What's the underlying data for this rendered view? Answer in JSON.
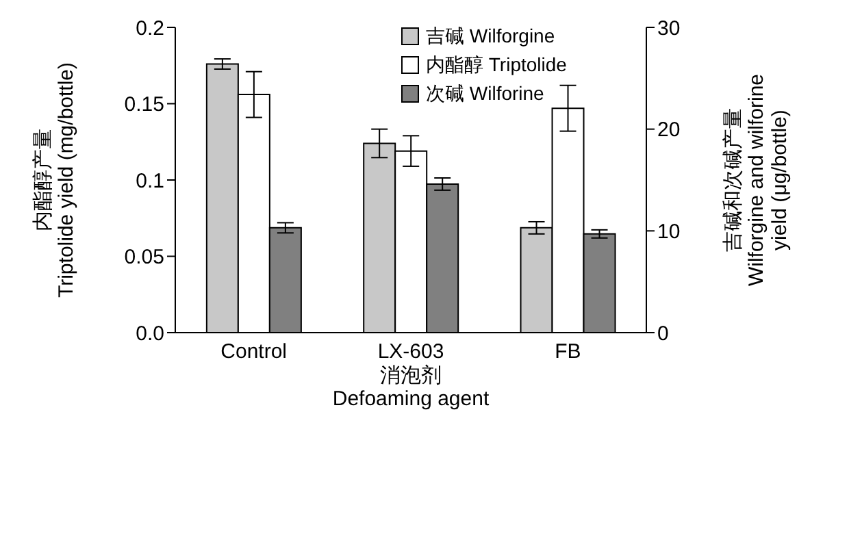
{
  "chart_data": {
    "type": "bar",
    "categories": [
      "Control",
      "LX-603",
      "FB"
    ],
    "series": [
      {
        "name": "吉碱 Wilforgine",
        "color": "#c8c8c8",
        "axis": "y2",
        "values": [
          26.4,
          18.6,
          10.3
        ],
        "errors": [
          0.5,
          1.4,
          0.6
        ]
      },
      {
        "name": "内酯醇 Triptolide",
        "color": "#ffffff",
        "values": [
          0.156,
          0.119,
          0.147
        ],
        "errors": [
          0.015,
          0.01,
          0.015
        ]
      },
      {
        "name": "次碱 Wilforine",
        "color": "#808080",
        "axis": "y2",
        "values": [
          10.3,
          14.6,
          9.7
        ],
        "errors": [
          0.5,
          0.6,
          0.4
        ]
      }
    ],
    "xlabel": "消泡剂\nDefoaming agent",
    "ylabel": "内酯醇产量\nTriptolide yield (mg/bottle)",
    "y2label": "吉碱和次碱产量\nWilforgine and wilforine\nyield (μg/bottle)",
    "ylim": [
      0,
      0.2
    ],
    "yticks": [
      {
        "value": 0,
        "label": "0.0"
      },
      0.05,
      0.1,
      0.15,
      0.2
    ],
    "y2lim": [
      0,
      30
    ],
    "y2ticks": [
      0,
      10,
      20,
      30
    ],
    "grid": false,
    "legend": "top"
  }
}
